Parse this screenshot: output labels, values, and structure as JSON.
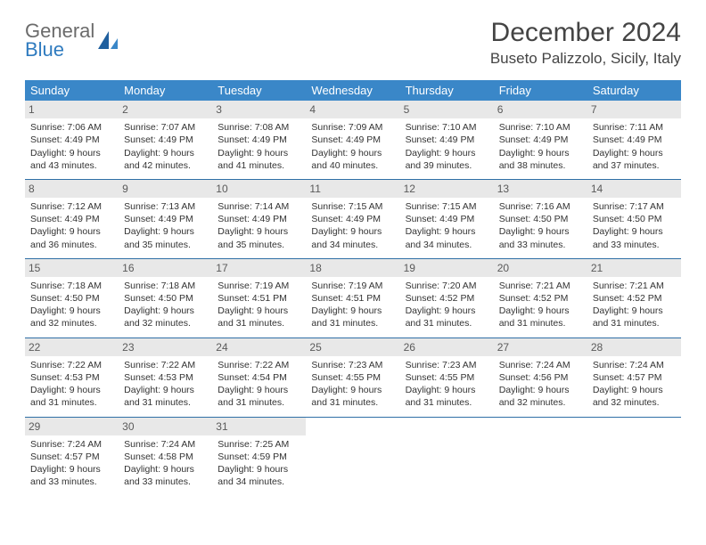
{
  "logo": {
    "line1": "General",
    "line2": "Blue"
  },
  "title": "December 2024",
  "location": "Buseto Palizzolo, Sicily, Italy",
  "colors": {
    "header_bg": "#3a87c8",
    "header_text": "#ffffff",
    "daynum_bg": "#e8e8e8",
    "row_border": "#2f6fa6",
    "logo_gray": "#6b6b6b",
    "logo_blue": "#2f7bbf"
  },
  "weekdays": [
    "Sunday",
    "Monday",
    "Tuesday",
    "Wednesday",
    "Thursday",
    "Friday",
    "Saturday"
  ],
  "weeks": [
    [
      {
        "num": "1",
        "sunrise": "7:06 AM",
        "sunset": "4:49 PM",
        "daylight": "9 hours and 43 minutes."
      },
      {
        "num": "2",
        "sunrise": "7:07 AM",
        "sunset": "4:49 PM",
        "daylight": "9 hours and 42 minutes."
      },
      {
        "num": "3",
        "sunrise": "7:08 AM",
        "sunset": "4:49 PM",
        "daylight": "9 hours and 41 minutes."
      },
      {
        "num": "4",
        "sunrise": "7:09 AM",
        "sunset": "4:49 PM",
        "daylight": "9 hours and 40 minutes."
      },
      {
        "num": "5",
        "sunrise": "7:10 AM",
        "sunset": "4:49 PM",
        "daylight": "9 hours and 39 minutes."
      },
      {
        "num": "6",
        "sunrise": "7:10 AM",
        "sunset": "4:49 PM",
        "daylight": "9 hours and 38 minutes."
      },
      {
        "num": "7",
        "sunrise": "7:11 AM",
        "sunset": "4:49 PM",
        "daylight": "9 hours and 37 minutes."
      }
    ],
    [
      {
        "num": "8",
        "sunrise": "7:12 AM",
        "sunset": "4:49 PM",
        "daylight": "9 hours and 36 minutes."
      },
      {
        "num": "9",
        "sunrise": "7:13 AM",
        "sunset": "4:49 PM",
        "daylight": "9 hours and 35 minutes."
      },
      {
        "num": "10",
        "sunrise": "7:14 AM",
        "sunset": "4:49 PM",
        "daylight": "9 hours and 35 minutes."
      },
      {
        "num": "11",
        "sunrise": "7:15 AM",
        "sunset": "4:49 PM",
        "daylight": "9 hours and 34 minutes."
      },
      {
        "num": "12",
        "sunrise": "7:15 AM",
        "sunset": "4:49 PM",
        "daylight": "9 hours and 34 minutes."
      },
      {
        "num": "13",
        "sunrise": "7:16 AM",
        "sunset": "4:50 PM",
        "daylight": "9 hours and 33 minutes."
      },
      {
        "num": "14",
        "sunrise": "7:17 AM",
        "sunset": "4:50 PM",
        "daylight": "9 hours and 33 minutes."
      }
    ],
    [
      {
        "num": "15",
        "sunrise": "7:18 AM",
        "sunset": "4:50 PM",
        "daylight": "9 hours and 32 minutes."
      },
      {
        "num": "16",
        "sunrise": "7:18 AM",
        "sunset": "4:50 PM",
        "daylight": "9 hours and 32 minutes."
      },
      {
        "num": "17",
        "sunrise": "7:19 AM",
        "sunset": "4:51 PM",
        "daylight": "9 hours and 31 minutes."
      },
      {
        "num": "18",
        "sunrise": "7:19 AM",
        "sunset": "4:51 PM",
        "daylight": "9 hours and 31 minutes."
      },
      {
        "num": "19",
        "sunrise": "7:20 AM",
        "sunset": "4:52 PM",
        "daylight": "9 hours and 31 minutes."
      },
      {
        "num": "20",
        "sunrise": "7:21 AM",
        "sunset": "4:52 PM",
        "daylight": "9 hours and 31 minutes."
      },
      {
        "num": "21",
        "sunrise": "7:21 AM",
        "sunset": "4:52 PM",
        "daylight": "9 hours and 31 minutes."
      }
    ],
    [
      {
        "num": "22",
        "sunrise": "7:22 AM",
        "sunset": "4:53 PM",
        "daylight": "9 hours and 31 minutes."
      },
      {
        "num": "23",
        "sunrise": "7:22 AM",
        "sunset": "4:53 PM",
        "daylight": "9 hours and 31 minutes."
      },
      {
        "num": "24",
        "sunrise": "7:22 AM",
        "sunset": "4:54 PM",
        "daylight": "9 hours and 31 minutes."
      },
      {
        "num": "25",
        "sunrise": "7:23 AM",
        "sunset": "4:55 PM",
        "daylight": "9 hours and 31 minutes."
      },
      {
        "num": "26",
        "sunrise": "7:23 AM",
        "sunset": "4:55 PM",
        "daylight": "9 hours and 31 minutes."
      },
      {
        "num": "27",
        "sunrise": "7:24 AM",
        "sunset": "4:56 PM",
        "daylight": "9 hours and 32 minutes."
      },
      {
        "num": "28",
        "sunrise": "7:24 AM",
        "sunset": "4:57 PM",
        "daylight": "9 hours and 32 minutes."
      }
    ],
    [
      {
        "num": "29",
        "sunrise": "7:24 AM",
        "sunset": "4:57 PM",
        "daylight": "9 hours and 33 minutes."
      },
      {
        "num": "30",
        "sunrise": "7:24 AM",
        "sunset": "4:58 PM",
        "daylight": "9 hours and 33 minutes."
      },
      {
        "num": "31",
        "sunrise": "7:25 AM",
        "sunset": "4:59 PM",
        "daylight": "9 hours and 34 minutes."
      },
      null,
      null,
      null,
      null
    ]
  ],
  "labels": {
    "sunrise": "Sunrise: ",
    "sunset": "Sunset: ",
    "daylight": "Daylight: "
  }
}
